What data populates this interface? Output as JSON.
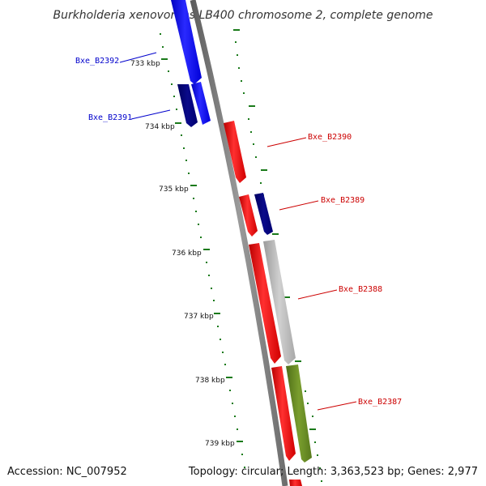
{
  "title": "Burkholderia xenovorans LB400 chromosome 2, complete genome",
  "footer": {
    "accession": "Accession: NC_007952",
    "topology": "Topology: circular; Length: 3,363,523 bp; Genes: 2,977"
  },
  "scale": {
    "labels": [
      "733 kbp",
      "734 kbp",
      "735 kbp",
      "736 kbp",
      "737 kbp",
      "738 kbp",
      "739 kbp"
    ]
  },
  "genes": [
    {
      "name": "Bxe_B2392",
      "strand": "reverse",
      "color": "#0000ff"
    },
    {
      "name": "Bxe_B2391",
      "strand": "reverse",
      "color": "#0000cc"
    },
    {
      "name": "Bxe_B2390",
      "strand": "forward",
      "color": "#ff0000"
    },
    {
      "name": "Bxe_B2389",
      "strand": "forward",
      "color": "#ff0000"
    },
    {
      "name": "Bxe_B2388",
      "strand": "forward",
      "color": "#ff0000"
    },
    {
      "name": "Bxe_B2387",
      "strand": "forward",
      "color": "#ff0000"
    }
  ],
  "colors": {
    "forward_gene": "#ff0000",
    "reverse_gene": "#0000ff",
    "reverse_dark": "#000080",
    "grey_feature": "#b8b8b8",
    "green_feature": "#6b8e23",
    "backbone": "#808080",
    "ticks": "#1a7a1a",
    "reverse_label": "#0000cc",
    "forward_label": "#cc0000"
  }
}
